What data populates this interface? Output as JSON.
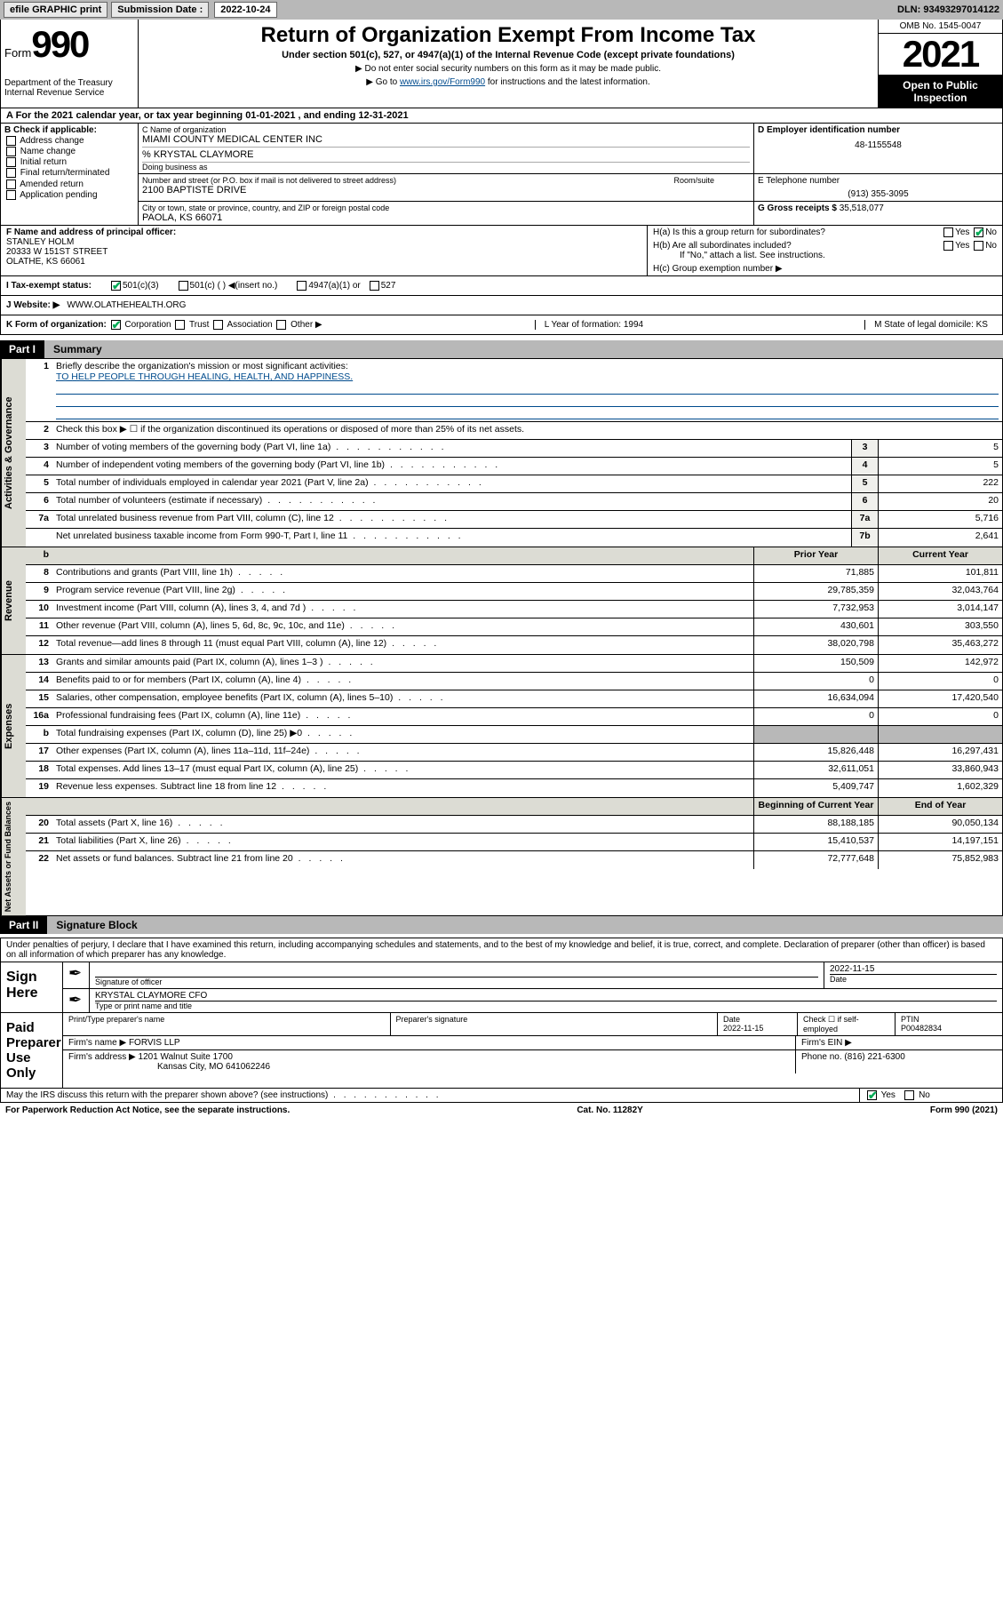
{
  "topbar": {
    "efile": "efile GRAPHIC print",
    "sub_label": "Submission Date :",
    "sub_date": "2022-10-24",
    "dln": "DLN: 93493297014122"
  },
  "header": {
    "form_word": "Form",
    "form_num": "990",
    "dept": "Department of the Treasury\nInternal Revenue Service",
    "title": "Return of Organization Exempt From Income Tax",
    "subtitle": "Under section 501(c), 527, or 4947(a)(1) of the Internal Revenue Code (except private foundations)",
    "note1": "▶ Do not enter social security numbers on this form as it may be made public.",
    "note2_pre": "▶ Go to ",
    "note2_link": "www.irs.gov/Form990",
    "note2_post": " for instructions and the latest information.",
    "omb": "OMB No. 1545-0047",
    "year": "2021",
    "open": "Open to Public Inspection"
  },
  "line_a": "A For the 2021 calendar year, or tax year beginning 01-01-2021  , and ending 12-31-2021",
  "col_b": {
    "hdr": "B Check if applicable:",
    "items": [
      "Address change",
      "Name change",
      "Initial return",
      "Final return/terminated",
      "Amended return",
      "Application pending"
    ]
  },
  "col_c": {
    "name_lbl": "C Name of organization",
    "name": "MIAMI COUNTY MEDICAL CENTER INC",
    "care": "% KRYSTAL CLAYMORE",
    "dba_lbl": "Doing business as",
    "addr_lbl": "Number and street (or P.O. box if mail is not delivered to street address)",
    "room_lbl": "Room/suite",
    "addr": "2100 BAPTISTE DRIVE",
    "city_lbl": "City or town, state or province, country, and ZIP or foreign postal code",
    "city": "PAOLA, KS  66071"
  },
  "col_d": {
    "lbl": "D Employer identification number",
    "val": "48-1155548"
  },
  "col_e": {
    "lbl": "E Telephone number",
    "val": "(913) 355-3095"
  },
  "col_g": {
    "lbl": "G Gross receipts $",
    "val": "35,518,077"
  },
  "col_f": {
    "lbl": "F Name and address of principal officer:",
    "name": "STANLEY HOLM",
    "addr1": "20333 W 151ST STREET",
    "addr2": "OLATHE, KS  66061"
  },
  "col_h": {
    "a": "H(a)  Is this a group return for subordinates?",
    "b": "H(b)  Are all subordinates included?",
    "b_note": "If \"No,\" attach a list. See instructions.",
    "c": "H(c)  Group exemption number ▶",
    "yes": "Yes",
    "no": "No"
  },
  "status": {
    "lbl": "I  Tax-exempt status:",
    "opts": [
      "501(c)(3)",
      "501(c) (  ) ◀(insert no.)",
      "4947(a)(1) or",
      "527"
    ]
  },
  "website": {
    "lbl": "J  Website: ▶",
    "val": "WWW.OLATHEHEALTH.ORG"
  },
  "korg": {
    "k": "K Form of organization:",
    "k_opts": [
      "Corporation",
      "Trust",
      "Association",
      "Other ▶"
    ],
    "l": "L Year of formation: 1994",
    "m": "M State of legal domicile: KS"
  },
  "part1": {
    "tab": "Part I",
    "title": "Summary"
  },
  "summary": {
    "sideA": "Activities & Governance",
    "sideR": "Revenue",
    "sideE": "Expenses",
    "sideN": "Net Assets or Fund Balances",
    "l1": "Briefly describe the organization's mission or most significant activities:",
    "l1v": "TO HELP PEOPLE THROUGH HEALING, HEALTH, AND HAPPINESS.",
    "l2": "Check this box ▶ ☐  if the organization discontinued its operations or disposed of more than 25% of its net assets.",
    "rows_ag": [
      {
        "n": "3",
        "d": "Number of voting members of the governing body (Part VI, line 1a)",
        "b": "3",
        "v": "5"
      },
      {
        "n": "4",
        "d": "Number of independent voting members of the governing body (Part VI, line 1b)",
        "b": "4",
        "v": "5"
      },
      {
        "n": "5",
        "d": "Total number of individuals employed in calendar year 2021 (Part V, line 2a)",
        "b": "5",
        "v": "222"
      },
      {
        "n": "6",
        "d": "Total number of volunteers (estimate if necessary)",
        "b": "6",
        "v": "20"
      },
      {
        "n": "7a",
        "d": "Total unrelated business revenue from Part VIII, column (C), line 12",
        "b": "7a",
        "v": "5,716"
      },
      {
        "n": "",
        "d": "Net unrelated business taxable income from Form 990-T, Part I, line 11",
        "b": "7b",
        "v": "2,641"
      }
    ],
    "col_py": "Prior Year",
    "col_cy": "Current Year",
    "rows_rev": [
      {
        "n": "8",
        "d": "Contributions and grants (Part VIII, line 1h)",
        "py": "71,885",
        "cy": "101,811"
      },
      {
        "n": "9",
        "d": "Program service revenue (Part VIII, line 2g)",
        "py": "29,785,359",
        "cy": "32,043,764"
      },
      {
        "n": "10",
        "d": "Investment income (Part VIII, column (A), lines 3, 4, and 7d )",
        "py": "7,732,953",
        "cy": "3,014,147"
      },
      {
        "n": "11",
        "d": "Other revenue (Part VIII, column (A), lines 5, 6d, 8c, 9c, 10c, and 11e)",
        "py": "430,601",
        "cy": "303,550"
      },
      {
        "n": "12",
        "d": "Total revenue—add lines 8 through 11 (must equal Part VIII, column (A), line 12)",
        "py": "38,020,798",
        "cy": "35,463,272"
      }
    ],
    "rows_exp": [
      {
        "n": "13",
        "d": "Grants and similar amounts paid (Part IX, column (A), lines 1–3 )",
        "py": "150,509",
        "cy": "142,972"
      },
      {
        "n": "14",
        "d": "Benefits paid to or for members (Part IX, column (A), line 4)",
        "py": "0",
        "cy": "0"
      },
      {
        "n": "15",
        "d": "Salaries, other compensation, employee benefits (Part IX, column (A), lines 5–10)",
        "py": "16,634,094",
        "cy": "17,420,540"
      },
      {
        "n": "16a",
        "d": "Professional fundraising fees (Part IX, column (A), line 11e)",
        "py": "0",
        "cy": "0"
      },
      {
        "n": "b",
        "d": "Total fundraising expenses (Part IX, column (D), line 25) ▶0",
        "py": "",
        "cy": "",
        "grey": true
      },
      {
        "n": "17",
        "d": "Other expenses (Part IX, column (A), lines 11a–11d, 11f–24e)",
        "py": "15,826,448",
        "cy": "16,297,431"
      },
      {
        "n": "18",
        "d": "Total expenses. Add lines 13–17 (must equal Part IX, column (A), line 25)",
        "py": "32,611,051",
        "cy": "33,860,943"
      },
      {
        "n": "19",
        "d": "Revenue less expenses. Subtract line 18 from line 12",
        "py": "5,409,747",
        "cy": "1,602,329"
      }
    ],
    "col_boy": "Beginning of Current Year",
    "col_eoy": "End of Year",
    "rows_net": [
      {
        "n": "20",
        "d": "Total assets (Part X, line 16)",
        "py": "88,188,185",
        "cy": "90,050,134"
      },
      {
        "n": "21",
        "d": "Total liabilities (Part X, line 26)",
        "py": "15,410,537",
        "cy": "14,197,151"
      },
      {
        "n": "22",
        "d": "Net assets or fund balances. Subtract line 21 from line 20",
        "py": "72,777,648",
        "cy": "75,852,983"
      }
    ]
  },
  "part2": {
    "tab": "Part II",
    "title": "Signature Block"
  },
  "sig": {
    "decl": "Under penalties of perjury, I declare that I have examined this return, including accompanying schedules and statements, and to the best of my knowledge and belief, it is true, correct, and complete. Declaration of preparer (other than officer) is based on all information of which preparer has any knowledge.",
    "sign_here": "Sign Here",
    "sig_officer": "Signature of officer",
    "sig_date": "2022-11-15",
    "date_lbl": "Date",
    "name_title": "KRYSTAL CLAYMORE CFO",
    "type_lbl": "Type or print name and title",
    "paid": "Paid Preparer Use Only",
    "prep_name_lbl": "Print/Type preparer's name",
    "prep_sig_lbl": "Preparer's signature",
    "prep_date": "2022-11-15",
    "check_lbl": "Check ☐ if self-employed",
    "ptin_lbl": "PTIN",
    "ptin": "P00482834",
    "firm_name_lbl": "Firm's name   ▶",
    "firm_name": "FORVIS LLP",
    "firm_ein_lbl": "Firm's EIN ▶",
    "firm_addr_lbl": "Firm's address ▶",
    "firm_addr1": "1201 Walnut Suite 1700",
    "firm_addr2": "Kansas City, MO  641062246",
    "phone_lbl": "Phone no.",
    "phone": "(816) 221-6300",
    "discuss": "May the IRS discuss this return with the preparer shown above? (see instructions)",
    "yes": "Yes",
    "no": "No"
  },
  "footer": {
    "left": "For Paperwork Reduction Act Notice, see the separate instructions.",
    "mid": "Cat. No. 11282Y",
    "right": "Form 990 (2021)"
  },
  "colors": {
    "grey": "#b8b8b8",
    "beige": "#dcdcd4",
    "link": "#004b8d"
  }
}
